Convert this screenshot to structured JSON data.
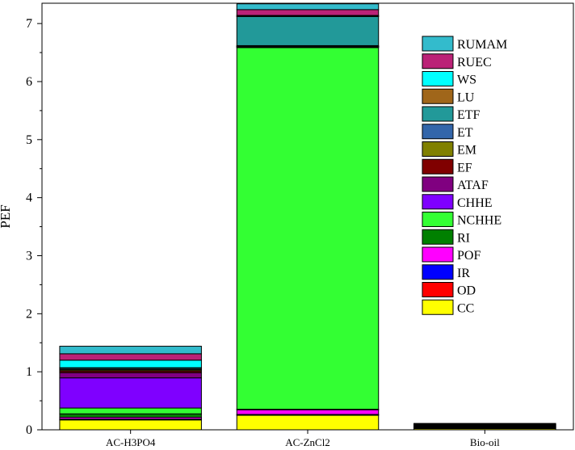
{
  "chart_data": {
    "type": "bar",
    "stacked": true,
    "title": "",
    "xlabel": "",
    "ylabel": "PEF",
    "ylim": [
      0,
      7.35
    ],
    "yticks": [
      0,
      1,
      2,
      3,
      4,
      5,
      6,
      7
    ],
    "grid": false,
    "legend_position": "top-right",
    "categories": [
      "AC-H3PO4",
      "AC-ZnCl2",
      "Bio-oil"
    ],
    "series": [
      {
        "name": "CC",
        "color": "#FFFF00",
        "values": [
          0.17,
          0.25,
          0.02
        ]
      },
      {
        "name": "OD",
        "color": "#FF0000",
        "values": [
          0.01,
          0.01,
          0.0
        ]
      },
      {
        "name": "IR",
        "color": "#0000FF",
        "values": [
          0.005,
          0.005,
          0.0
        ]
      },
      {
        "name": "POF",
        "color": "#FF00FF",
        "values": [
          0.03,
          0.08,
          0.005
        ]
      },
      {
        "name": "RI",
        "color": "#008000",
        "values": [
          0.06,
          0.01,
          0.01
        ]
      },
      {
        "name": "NCHHE",
        "color": "#33FF33",
        "values": [
          0.1,
          6.23,
          0.005
        ]
      },
      {
        "name": "CHHE",
        "color": "#7F00FF",
        "values": [
          0.52,
          0.01,
          0.005
        ]
      },
      {
        "name": "ATAF",
        "color": "#800080",
        "values": [
          0.09,
          0.005,
          0.005
        ]
      },
      {
        "name": "EF",
        "color": "#800000",
        "values": [
          0.03,
          0.005,
          0.01
        ]
      },
      {
        "name": "EM",
        "color": "#808000",
        "values": [
          0.02,
          0.005,
          0.005
        ]
      },
      {
        "name": "ET",
        "color": "#3366AA",
        "values": [
          0.01,
          0.01,
          0.005
        ]
      },
      {
        "name": "ETF",
        "color": "#229999",
        "values": [
          0.02,
          0.5,
          0.01
        ]
      },
      {
        "name": "LU",
        "color": "#A0661A",
        "values": [
          0.005,
          0.01,
          0.005
        ]
      },
      {
        "name": "WS",
        "color": "#00FFFF",
        "values": [
          0.13,
          0.01,
          0.005
        ]
      },
      {
        "name": "RUEC",
        "color": "#BB2277",
        "values": [
          0.11,
          0.1,
          0.01
        ]
      },
      {
        "name": "RUMAM",
        "color": "#33BBCC",
        "values": [
          0.13,
          0.1,
          0.01
        ]
      }
    ]
  }
}
